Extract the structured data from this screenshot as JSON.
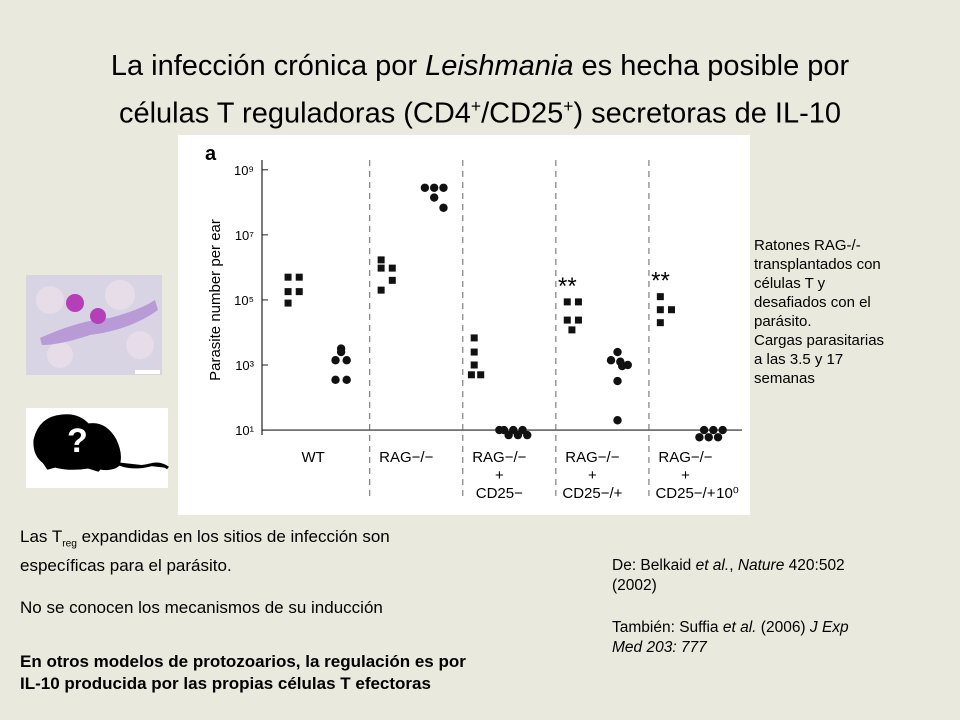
{
  "header": {
    "title_parts": [
      "La infección crónica por ",
      "Leishmania",
      " es hecha posible por",
      "células T reguladoras (CD4",
      "+",
      "/CD25",
      "+",
      ") secretoras de IL-10"
    ]
  },
  "figure": {
    "chart_data": {
      "type": "scatter",
      "panel_label": "a",
      "ylabel": "Parasite number per ear",
      "categories": [
        [
          "WT"
        ],
        [
          "RAG−/−"
        ],
        [
          "RAG−/−",
          "+",
          "CD25−"
        ],
        [
          "RAG−/−",
          "+",
          "CD25−/+"
        ],
        [
          "RAG−/−",
          "+",
          "CD25−/+"
        ]
      ],
      "stray_label": "10⁰",
      "annotations": [
        {
          "x": 4,
          "text": "**"
        },
        {
          "x": 5,
          "text": "**"
        }
      ],
      "log_scale": true,
      "ylim": [
        4,
        2000000000
      ],
      "xlim": [
        0.45,
        5.5
      ],
      "yticks": [
        {
          "value": 10,
          "label": "10¹"
        },
        {
          "value": 1000,
          "label": "10³"
        },
        {
          "value": 100000,
          "label": "10⁵"
        },
        {
          "value": 10000000,
          "label": "10⁷"
        },
        {
          "value": 1000000000,
          "label": "10⁹"
        }
      ],
      "color": "#111111",
      "series": [
        {
          "marker": "square",
          "x": [
            0.73,
            0.85,
            0.73,
            0.85,
            0.73
          ],
          "values": [
            500000,
            500000,
            180000,
            180000,
            80000
          ]
        },
        {
          "marker": "circle",
          "x": [
            1.3,
            1.3,
            1.24,
            1.36,
            1.24,
            1.36
          ],
          "values": [
            3200,
            2500,
            1400,
            1400,
            350,
            350
          ]
        },
        {
          "marker": "square",
          "x": [
            1.73,
            1.85,
            1.73,
            1.85,
            1.73
          ],
          "values": [
            1700000,
            950000,
            950000,
            400000,
            200000
          ]
        },
        {
          "marker": "circle",
          "x": [
            2.2,
            2.3,
            2.4,
            2.3,
            2.4
          ],
          "values": [
            280000000,
            280000000,
            280000000,
            140000000,
            68000000
          ]
        },
        {
          "marker": "square",
          "x": [
            2.73,
            2.73,
            2.73,
            2.7,
            2.8
          ],
          "values": [
            6800,
            2500,
            1000,
            500,
            500
          ]
        },
        {
          "marker": "circle",
          "x": [
            3.05,
            3.15,
            3.25,
            3.1,
            3.2,
            3.3,
            3.0
          ],
          "values": [
            10,
            10,
            10,
            7,
            7,
            7,
            10
          ]
        },
        {
          "marker": "square",
          "x": [
            3.73,
            3.85,
            3.73,
            3.85,
            3.78
          ],
          "values": [
            87000,
            87000,
            24000,
            24000,
            12000
          ]
        },
        {
          "marker": "circle",
          "x": [
            4.27,
            4.2,
            4.3,
            4.38,
            4.32,
            4.27,
            4.27
          ],
          "values": [
            2500,
            1400,
            1260,
            1000,
            930,
            320,
            20
          ]
        },
        {
          "marker": "square",
          "x": [
            4.73,
            4.73,
            4.85,
            4.73
          ],
          "values": [
            126000,
            50000,
            50000,
            20000
          ]
        },
        {
          "marker": "circle",
          "x": [
            5.2,
            5.3,
            5.4,
            5.15,
            5.25,
            5.35
          ],
          "values": [
            10,
            10,
            10,
            6,
            6,
            6
          ]
        }
      ]
    }
  },
  "figure_note": {
    "lines": [
      "Ratones RAG-/-",
      "transplantados con",
      "células T y",
      "desafiados con el",
      "parásito.",
      "Cargas parasitarias",
      "a las 3.5 y 17",
      "semanas"
    ]
  },
  "body": {
    "p1_parts": [
      "Las T",
      "reg",
      " expandidas en los sitios de infección son",
      "específicas para el parásito."
    ],
    "p2": "No se conocen los mecanismos de su inducción",
    "p3_lines": [
      "En otros modelos de protozoarios, la regulación es por",
      "IL-10 producida por las propias células T efectoras"
    ]
  },
  "references": {
    "ref1_parts": [
      "De: Belkaid ",
      "et al.",
      ", ",
      "Nature",
      " 420:502",
      "(2002)"
    ],
    "ref2_parts": [
      "También: Suffia ",
      "et al.",
      " (2006) ",
      "J Exp",
      "Med 203: 777"
    ]
  }
}
